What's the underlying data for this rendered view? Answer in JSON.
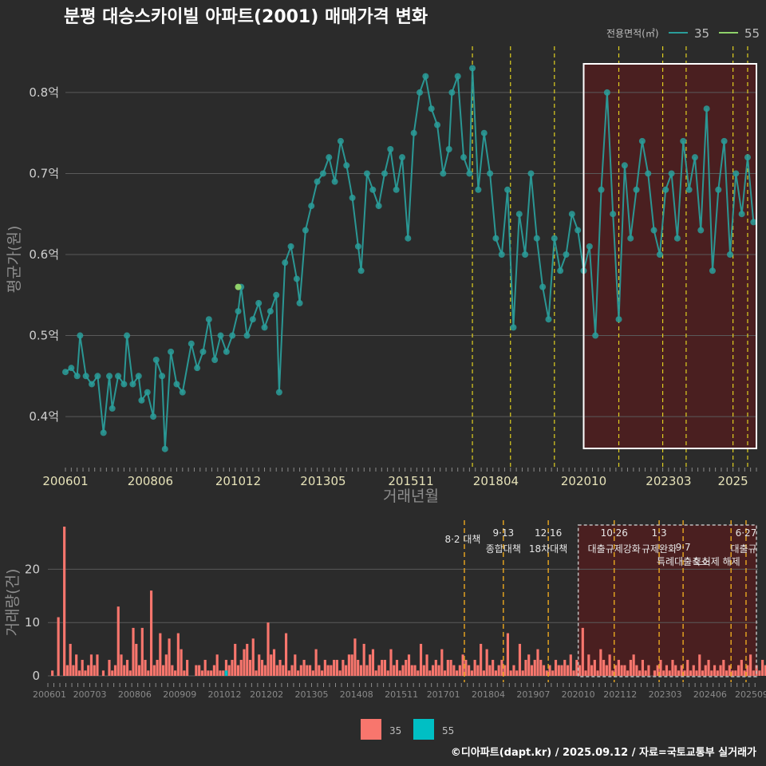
{
  "title": "분평 대승스카이빌 아파트(2001) 매매가격 변화",
  "legend_top": {
    "title": "전용면적(㎡)",
    "items": [
      {
        "label": "35",
        "color": "#2a9d9a"
      },
      {
        "label": "55",
        "color": "#8fd16a"
      }
    ]
  },
  "legend_bottom": {
    "items": [
      {
        "label": "35",
        "color": "#f8766d"
      },
      {
        "label": "55",
        "color": "#00bfc4"
      }
    ]
  },
  "source": "©디아파트(dapt.kr) / 2025.09.12 / 자료=국토교통부 실거래가",
  "chart_data": [
    {
      "type": "scatter",
      "panel": "price",
      "xlabel": "거래년월",
      "ylabel": "평균가(원)",
      "x_range": [
        "2006-01",
        "2025-09"
      ],
      "ylim": [
        0.34,
        0.86
      ],
      "x_ticks": [
        "200601",
        "200806",
        "201012",
        "201305",
        "201511",
        "201804",
        "202010",
        "202303",
        "2025"
      ],
      "y_ticks": [
        {
          "value": 0.4,
          "label": "0.4억"
        },
        {
          "value": 0.5,
          "label": "0.5억"
        },
        {
          "value": 0.6,
          "label": "0.6억"
        },
        {
          "value": 0.7,
          "label": "0.7억"
        },
        {
          "value": 0.8,
          "label": "0.8억"
        }
      ],
      "grid": true,
      "highlight_range": [
        "2020-10",
        "2025-09"
      ],
      "policy_lines": [
        "2017-08",
        "2018-09",
        "2019-12",
        "2021-10",
        "2023-01",
        "2023-09",
        "2025-01",
        "2025-06"
      ],
      "series": [
        {
          "name": "35",
          "color": "#2a9d9a",
          "points": [
            [
              "2006-01",
              0.455
            ],
            [
              "2006-03",
              0.46
            ],
            [
              "2006-05",
              0.45
            ],
            [
              "2006-06",
              0.5
            ],
            [
              "2006-08",
              0.45
            ],
            [
              "2006-10",
              0.44
            ],
            [
              "2006-12",
              0.45
            ],
            [
              "2007-02",
              0.38
            ],
            [
              "2007-04",
              0.45
            ],
            [
              "2007-05",
              0.41
            ],
            [
              "2007-07",
              0.45
            ],
            [
              "2007-09",
              0.44
            ],
            [
              "2007-10",
              0.5
            ],
            [
              "2007-12",
              0.44
            ],
            [
              "2008-02",
              0.45
            ],
            [
              "2008-03",
              0.42
            ],
            [
              "2008-05",
              0.43
            ],
            [
              "2008-07",
              0.4
            ],
            [
              "2008-08",
              0.47
            ],
            [
              "2008-10",
              0.45
            ],
            [
              "2008-11",
              0.36
            ],
            [
              "2009-01",
              0.48
            ],
            [
              "2009-03",
              0.44
            ],
            [
              "2009-05",
              0.43
            ],
            [
              "2009-08",
              0.49
            ],
            [
              "2009-10",
              0.46
            ],
            [
              "2009-12",
              0.48
            ],
            [
              "2010-02",
              0.52
            ],
            [
              "2010-04",
              0.47
            ],
            [
              "2010-06",
              0.5
            ],
            [
              "2010-08",
              0.48
            ],
            [
              "2010-10",
              0.5
            ],
            [
              "2010-12",
              0.53
            ],
            [
              "2011-01",
              0.56
            ],
            [
              "2011-03",
              0.5
            ],
            [
              "2011-05",
              0.52
            ],
            [
              "2011-07",
              0.54
            ],
            [
              "2011-09",
              0.51
            ],
            [
              "2011-11",
              0.53
            ],
            [
              "2012-01",
              0.55
            ],
            [
              "2012-02",
              0.43
            ],
            [
              "2012-04",
              0.59
            ],
            [
              "2012-06",
              0.61
            ],
            [
              "2012-08",
              0.57
            ],
            [
              "2012-09",
              0.54
            ],
            [
              "2012-11",
              0.63
            ],
            [
              "2013-01",
              0.66
            ],
            [
              "2013-03",
              0.69
            ],
            [
              "2013-05",
              0.7
            ],
            [
              "2013-07",
              0.72
            ],
            [
              "2013-09",
              0.69
            ],
            [
              "2013-11",
              0.74
            ],
            [
              "2014-01",
              0.71
            ],
            [
              "2014-03",
              0.67
            ],
            [
              "2014-05",
              0.61
            ],
            [
              "2014-06",
              0.58
            ],
            [
              "2014-08",
              0.7
            ],
            [
              "2014-10",
              0.68
            ],
            [
              "2014-12",
              0.66
            ],
            [
              "2015-02",
              0.7
            ],
            [
              "2015-04",
              0.73
            ],
            [
              "2015-06",
              0.68
            ],
            [
              "2015-08",
              0.72
            ],
            [
              "2015-10",
              0.62
            ],
            [
              "2015-12",
              0.75
            ],
            [
              "2016-02",
              0.8
            ],
            [
              "2016-04",
              0.82
            ],
            [
              "2016-06",
              0.78
            ],
            [
              "2016-08",
              0.76
            ],
            [
              "2016-10",
              0.7
            ],
            [
              "2016-12",
              0.73
            ],
            [
              "2017-01",
              0.8
            ],
            [
              "2017-03",
              0.82
            ],
            [
              "2017-05",
              0.72
            ],
            [
              "2017-07",
              0.7
            ],
            [
              "2017-08",
              0.83
            ],
            [
              "2017-10",
              0.68
            ],
            [
              "2017-12",
              0.75
            ],
            [
              "2018-02",
              0.7
            ],
            [
              "2018-04",
              0.62
            ],
            [
              "2018-06",
              0.6
            ],
            [
              "2018-08",
              0.68
            ],
            [
              "2018-10",
              0.51
            ],
            [
              "2018-12",
              0.65
            ],
            [
              "2019-02",
              0.6
            ],
            [
              "2019-04",
              0.7
            ],
            [
              "2019-06",
              0.62
            ],
            [
              "2019-08",
              0.56
            ],
            [
              "2019-10",
              0.52
            ],
            [
              "2019-12",
              0.62
            ],
            [
              "2020-02",
              0.58
            ],
            [
              "2020-04",
              0.6
            ],
            [
              "2020-06",
              0.65
            ],
            [
              "2020-08",
              0.63
            ],
            [
              "2020-10",
              0.58
            ],
            [
              "2020-12",
              0.61
            ],
            [
              "2021-02",
              0.5
            ],
            [
              "2021-04",
              0.68
            ],
            [
              "2021-06",
              0.8
            ],
            [
              "2021-08",
              0.65
            ],
            [
              "2021-10",
              0.52
            ],
            [
              "2021-12",
              0.71
            ],
            [
              "2022-02",
              0.62
            ],
            [
              "2022-04",
              0.68
            ],
            [
              "2022-06",
              0.74
            ],
            [
              "2022-08",
              0.7
            ],
            [
              "2022-10",
              0.63
            ],
            [
              "2022-12",
              0.6
            ],
            [
              "2023-02",
              0.68
            ],
            [
              "2023-04",
              0.7
            ],
            [
              "2023-06",
              0.62
            ],
            [
              "2023-08",
              0.74
            ],
            [
              "2023-10",
              0.68
            ],
            [
              "2023-12",
              0.72
            ],
            [
              "2024-02",
              0.63
            ],
            [
              "2024-04",
              0.78
            ],
            [
              "2024-06",
              0.58
            ],
            [
              "2024-08",
              0.68
            ],
            [
              "2024-10",
              0.74
            ],
            [
              "2024-12",
              0.6
            ],
            [
              "2025-02",
              0.7
            ],
            [
              "2025-04",
              0.65
            ],
            [
              "2025-06",
              0.72
            ],
            [
              "2025-08",
              0.64
            ]
          ]
        },
        {
          "name": "55",
          "color": "#8fd16a",
          "points": [
            [
              "2010-12",
              0.56
            ]
          ]
        }
      ]
    },
    {
      "type": "bar",
      "panel": "volume",
      "ylabel": "거래량(건)",
      "x_range": [
        "2006-01",
        "2025-09"
      ],
      "ylim": [
        0,
        28
      ],
      "y_ticks": [
        0,
        10,
        20
      ],
      "x_ticks": [
        "200601",
        "200703",
        "200806",
        "200909",
        "201012",
        "201202",
        "201305",
        "201408",
        "201511",
        "201701",
        "201804",
        "201907",
        "202010",
        "202112",
        "202303",
        "202406",
        "202509"
      ],
      "grid": true,
      "highlight_range": [
        "2020-10",
        "2025-09"
      ],
      "annotations": [
        {
          "date": "2017-08",
          "date_label": "",
          "label": "8·2 대책"
        },
        {
          "date": "2018-09",
          "date_label": "9·13",
          "label": "종합대책"
        },
        {
          "date": "2019-12",
          "date_label": "12·16",
          "label": "18차대책"
        },
        {
          "date": "2021-10",
          "date_label": "10·26",
          "label": "대출규제강화"
        },
        {
          "date": "2023-01",
          "date_label": "1·3",
          "label": "규제완화"
        },
        {
          "date": "2023-09",
          "date_label": "9·7",
          "label": "특례대출축소"
        },
        {
          "date": "2025-01",
          "date_label": "",
          "label": "토허제 해제"
        },
        {
          "date": "2025-06",
          "date_label": "6·27",
          "label": "대출규"
        }
      ],
      "series": [
        {
          "name": "35",
          "color": "#f8766d",
          "values": [
            0,
            1,
            0,
            11,
            0,
            28,
            2,
            6,
            2,
            4,
            1,
            3,
            1,
            2,
            4,
            2,
            4,
            0,
            1,
            0,
            3,
            1,
            2,
            13,
            4,
            2,
            3,
            1,
            9,
            6,
            2,
            9,
            3,
            1,
            16,
            2,
            3,
            8,
            2,
            4,
            7,
            2,
            1,
            8,
            5,
            1,
            3,
            0,
            0,
            2,
            2,
            1,
            3,
            1,
            1,
            2,
            4,
            1,
            1,
            3,
            2,
            3,
            6,
            2,
            3,
            5,
            6,
            3,
            7,
            1,
            4,
            3,
            2,
            10,
            4,
            5,
            2,
            3,
            2,
            8,
            1,
            2,
            4,
            1,
            2,
            3,
            2,
            2,
            1,
            5,
            2,
            1,
            3,
            2,
            2,
            3,
            3,
            1,
            3,
            2,
            4,
            4,
            7,
            3,
            2,
            6,
            2,
            4,
            5,
            1,
            2,
            3,
            3,
            1,
            5,
            2,
            3,
            1,
            2,
            3,
            4,
            2,
            2,
            1,
            6,
            2,
            4,
            1,
            2,
            3,
            2,
            5,
            1,
            3,
            3,
            2,
            1,
            2,
            4,
            3,
            2,
            1,
            3,
            2,
            6,
            1,
            5,
            2,
            3,
            1,
            2,
            3,
            2,
            8,
            1,
            2,
            1,
            6,
            1,
            3,
            4,
            2,
            3,
            5,
            3,
            2,
            1,
            2,
            1,
            3,
            2,
            2,
            3,
            2,
            4,
            1,
            3,
            2,
            9,
            1,
            4,
            2,
            3,
            1,
            5,
            3,
            2,
            4,
            1,
            2,
            3,
            2,
            2,
            1,
            3,
            4,
            2,
            1,
            3,
            1,
            2,
            0,
            1,
            2,
            3,
            1,
            2,
            1,
            3,
            2,
            1,
            2,
            1,
            3,
            1,
            2,
            1,
            4,
            1,
            2,
            3,
            1,
            2,
            1,
            2,
            3,
            1,
            2,
            1,
            1,
            2,
            3,
            1,
            2,
            4,
            1,
            2,
            1,
            3,
            2,
            1,
            4,
            2,
            1,
            3,
            2,
            1,
            4,
            3,
            2,
            1,
            3,
            2,
            4,
            1,
            2,
            3,
            4,
            2,
            1,
            3,
            2,
            1,
            2,
            3,
            2,
            4,
            3,
            2,
            1,
            2,
            3,
            4,
            2,
            1,
            3,
            2,
            2,
            3,
            1,
            4,
            2,
            3,
            2,
            1,
            2,
            3,
            4,
            2,
            1,
            3,
            2
          ]
        },
        {
          "name": "55",
          "color": "#00bfc4",
          "values_at": [
            [
              "2010-12",
              1
            ]
          ]
        }
      ]
    }
  ]
}
